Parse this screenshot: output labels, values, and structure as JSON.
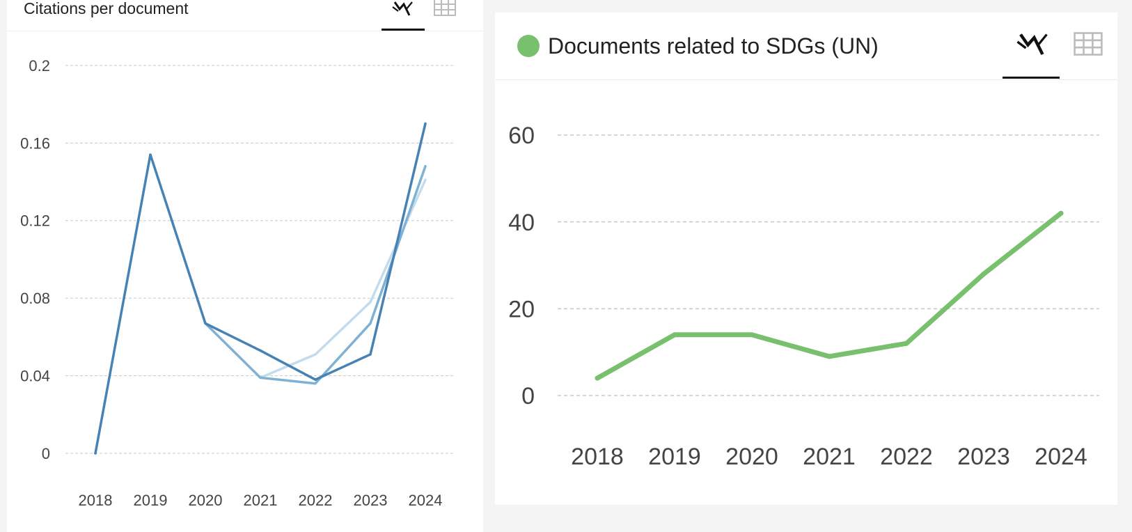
{
  "panels": [
    {
      "title": "Citations per document",
      "views": [
        {
          "name": "chart",
          "icon": "line-chart-icon",
          "active": true
        },
        {
          "name": "table",
          "icon": "grid-table-icon",
          "active": false
        }
      ]
    },
    {
      "title": "Documents related to SDGs (UN)",
      "views": [
        {
          "name": "chart",
          "icon": "line-chart-icon",
          "active": true
        },
        {
          "name": "table",
          "icon": "grid-table-icon",
          "active": false
        }
      ]
    }
  ],
  "chart_data": [
    {
      "type": "line",
      "title": "Citations per document",
      "xlabel": "",
      "ylabel": "",
      "categories": [
        "2018",
        "2019",
        "2020",
        "2021",
        "2022",
        "2023",
        "2024"
      ],
      "yticks": [
        "0",
        "0.04",
        "0.08",
        "0.12",
        "0.16",
        "0.2"
      ],
      "ylim": [
        0,
        0.2
      ],
      "grid": true,
      "series": [
        {
          "color": "#c3dcec",
          "values": [
            null,
            null,
            null,
            0.039,
            0.051,
            0.078,
            0.141
          ]
        },
        {
          "color": "#7eb1d3",
          "values": [
            null,
            null,
            0.067,
            0.039,
            0.036,
            0.067,
            0.148
          ]
        },
        {
          "color": "#4682b4",
          "values": [
            0,
            0.154,
            0.067,
            0.053,
            0.038,
            0.051,
            0.17
          ]
        }
      ]
    },
    {
      "type": "line",
      "title": "Documents related to SDGs (UN)",
      "xlabel": "",
      "ylabel": "",
      "categories": [
        "2018",
        "2019",
        "2020",
        "2021",
        "2022",
        "2023",
        "2024"
      ],
      "yticks": [
        "0",
        "20",
        "40",
        "60"
      ],
      "ylim": [
        0,
        60
      ],
      "grid": true,
      "series": [
        {
          "color": "#79c06e",
          "values": [
            4,
            14,
            14,
            9,
            12,
            28,
            42
          ]
        }
      ]
    }
  ]
}
